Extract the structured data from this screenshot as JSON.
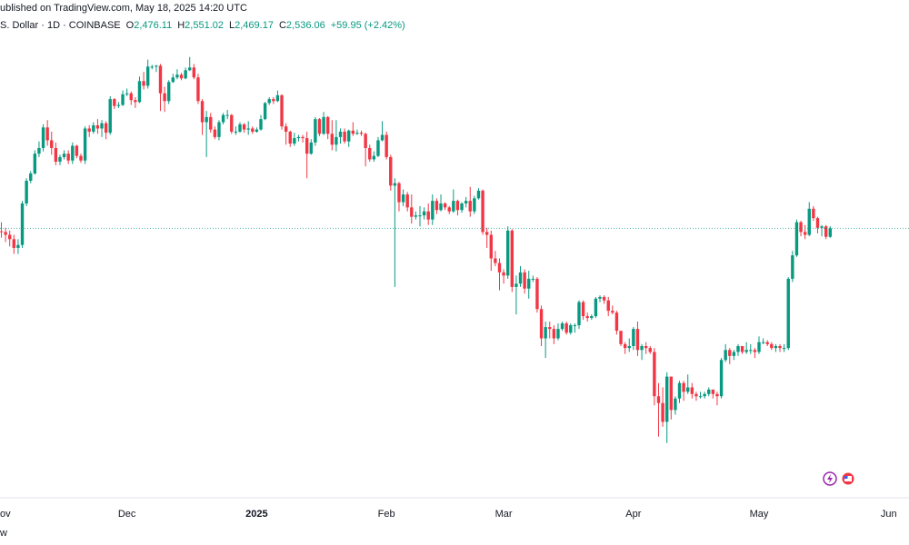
{
  "header": {
    "source": "ublished on TradingView.com, May 18, 2025 14:20 UTC",
    "symbol": "S. Dollar · 1D · COINBASE",
    "ohlc": [
      {
        "label": "O",
        "value": "2,476.11"
      },
      {
        "label": "H",
        "value": "2,551.02"
      },
      {
        "label": "L",
        "value": "2,469.17"
      },
      {
        "label": "C",
        "value": "2,536.06"
      }
    ],
    "change": "+59.95 (+2.42%)"
  },
  "chart_data": {
    "type": "candlestick",
    "log_scale": true,
    "up_color": "#089981",
    "down_color": "#f23645",
    "ylim": [
      1193,
      4826
    ],
    "xlim": [
      0,
      216
    ],
    "xticks": [
      {
        "value": 0,
        "label": "ov"
      },
      {
        "value": 30,
        "label": "Dec"
      },
      {
        "value": 61,
        "label": "2025"
      },
      {
        "value": 92,
        "label": "Feb"
      },
      {
        "value": 120,
        "label": "Mar"
      },
      {
        "value": 151,
        "label": "Apr"
      },
      {
        "value": 181,
        "label": "May"
      },
      {
        "value": 212,
        "label": "Jun"
      }
    ],
    "open": [
      2515,
      2510,
      2490,
      2460,
      2400,
      2420,
      2720,
      2900,
      2960,
      3130,
      3180,
      3370,
      3250,
      3180,
      3060,
      3100,
      3130,
      3070,
      3200,
      3110,
      3070,
      3360,
      3330,
      3390,
      3360,
      3410,
      3320,
      3650,
      3580,
      3590,
      3700,
      3710,
      3640,
      3620,
      3840,
      3790,
      4000,
      4000,
      4010,
      3710,
      3630,
      3830,
      3880,
      3910,
      3870,
      3960,
      3990,
      3880,
      3630,
      3420,
      3470,
      3350,
      3280,
      3420,
      3490,
      3490,
      3330,
      3330,
      3400,
      3350,
      3360,
      3330,
      3350,
      3450,
      3610,
      3650,
      3630,
      3690,
      3380,
      3330,
      3220,
      3270,
      3280,
      3270,
      3130,
      3230,
      3450,
      3310,
      3470,
      3310,
      3210,
      3280,
      3330,
      3240,
      3340,
      3310,
      3320,
      3310,
      3180,
      3080,
      3110,
      3250,
      3300,
      3100,
      2860,
      2880,
      2730,
      2790,
      2690,
      2620,
      2630,
      2630,
      2660,
      2600,
      2740,
      2670,
      2720,
      2690,
      2660,
      2740,
      2670,
      2720,
      2740,
      2660,
      2760,
      2820,
      2510,
      2490,
      2330,
      2300,
      2240,
      2220,
      2520,
      2150,
      2170,
      2240,
      2140,
      2200,
      2200,
      2020,
      1860,
      1920,
      1910,
      1860,
      1910,
      1940,
      1890,
      1930,
      1930,
      2060,
      1980,
      1970,
      1980,
      2080,
      2090,
      2070,
      2010,
      2000,
      1900,
      1830,
      1810,
      1820,
      1910,
      1800,
      1820,
      1810,
      1790,
      1580,
      1550,
      1470,
      1670,
      1520,
      1570,
      1640,
      1600,
      1620,
      1590,
      1580,
      1580,
      1590,
      1610,
      1590,
      1580,
      1750,
      1800,
      1770,
      1790,
      1820,
      1790,
      1800,
      1800,
      1790,
      1840,
      1840,
      1830,
      1810,
      1820,
      1810,
      1810,
      2200,
      2350,
      2580,
      2510,
      2490,
      2680,
      2610,
      2540,
      2550,
      2476.11
    ],
    "high": [
      2580,
      2540,
      2520,
      2490,
      2460,
      2740,
      2920,
      2980,
      3160,
      3240,
      3400,
      3440,
      3330,
      3230,
      3120,
      3160,
      3160,
      3230,
      3210,
      3130,
      3380,
      3390,
      3420,
      3450,
      3440,
      3430,
      3680,
      3660,
      3620,
      3740,
      3760,
      3730,
      3670,
      3890,
      3940,
      4080,
      4020,
      4020,
      4030,
      3780,
      3850,
      3920,
      3970,
      3930,
      3990,
      4110,
      4030,
      3920,
      3650,
      3530,
      3510,
      3380,
      3440,
      3510,
      3540,
      3500,
      3380,
      3420,
      3410,
      3430,
      3380,
      3370,
      3490,
      3620,
      3670,
      3670,
      3740,
      3700,
      3410,
      3340,
      3320,
      3300,
      3300,
      3330,
      3260,
      3470,
      3460,
      3520,
      3480,
      3440,
      3440,
      3360,
      3360,
      3350,
      3420,
      3350,
      3340,
      3320,
      3210,
      3150,
      3280,
      3430,
      3330,
      3120,
      2920,
      2890,
      2830,
      2810,
      2790,
      2660,
      2700,
      2690,
      2720,
      2790,
      2760,
      2790,
      2730,
      2700,
      2830,
      2750,
      2730,
      2770,
      2850,
      2780,
      2840,
      2830,
      2540,
      2520,
      2380,
      2330,
      2260,
      2550,
      2530,
      2220,
      2280,
      2260,
      2250,
      2220,
      2210,
      2040,
      1950,
      1950,
      1930,
      1940,
      1950,
      1950,
      1940,
      1940,
      2070,
      2070,
      2000,
      1990,
      2090,
      2100,
      2100,
      2090,
      2040,
      2010,
      1900,
      1840,
      1860,
      1920,
      1950,
      1830,
      1840,
      1820,
      1810,
      1640,
      1620,
      1690,
      1670,
      1580,
      1650,
      1650,
      1680,
      1640,
      1600,
      1600,
      1600,
      1620,
      1610,
      1600,
      1760,
      1830,
      1810,
      1800,
      1830,
      1820,
      1840,
      1830,
      1810,
      1870,
      1860,
      1850,
      1840,
      1830,
      1830,
      1830,
      2210,
      2380,
      2600,
      2590,
      2560,
      2730,
      2700,
      2620,
      2560,
      2560,
      2551.02
    ],
    "low": [
      2470,
      2440,
      2410,
      2360,
      2360,
      2400,
      2700,
      2880,
      2950,
      3100,
      3150,
      3200,
      3120,
      3030,
      3030,
      3080,
      3040,
      3040,
      3090,
      3050,
      3040,
      3280,
      3310,
      3310,
      3280,
      3260,
      3300,
      3550,
      3560,
      3580,
      3680,
      3590,
      3560,
      3610,
      3750,
      3760,
      3970,
      3940,
      3530,
      3520,
      3600,
      3820,
      3860,
      3850,
      3860,
      3950,
      3860,
      3600,
      3300,
      3100,
      3320,
      3260,
      3250,
      3400,
      3450,
      3310,
      3300,
      3320,
      3320,
      3300,
      3310,
      3320,
      3340,
      3440,
      3590,
      3600,
      3620,
      3350,
      3210,
      3190,
      3200,
      3240,
      3230,
      2920,
      3120,
      3200,
      3290,
      3300,
      3260,
      3160,
      3150,
      3220,
      3220,
      3190,
      3290,
      3300,
      3290,
      3020,
      3060,
      3060,
      3100,
      3240,
      3080,
      2820,
      2150,
      2660,
      2700,
      2660,
      2570,
      2600,
      2550,
      2600,
      2560,
      2560,
      2640,
      2660,
      2670,
      2640,
      2650,
      2630,
      2650,
      2690,
      2620,
      2640,
      2750,
      2490,
      2400,
      2250,
      2280,
      2130,
      2170,
      2200,
      2120,
      1990,
      2150,
      2110,
      2080,
      2180,
      2000,
      1820,
      1760,
      1860,
      1830,
      1850,
      1900,
      1880,
      1880,
      1890,
      1910,
      1960,
      1950,
      1960,
      1970,
      2060,
      2050,
      1980,
      1990,
      1880,
      1820,
      1780,
      1790,
      1800,
      1770,
      1750,
      1780,
      1780,
      1540,
      1410,
      1450,
      1385,
      1480,
      1500,
      1550,
      1560,
      1590,
      1570,
      1560,
      1570,
      1570,
      1580,
      1570,
      1540,
      1570,
      1740,
      1730,
      1750,
      1770,
      1780,
      1780,
      1780,
      1760,
      1780,
      1830,
      1820,
      1800,
      1790,
      1790,
      1790,
      1800,
      2180,
      2340,
      2480,
      2460,
      2480,
      2590,
      2500,
      2480,
      2460,
      2469.17
    ],
    "close": [
      2510,
      2490,
      2460,
      2400,
      2420,
      2720,
      2900,
      2960,
      3130,
      3180,
      3370,
      3250,
      3180,
      3060,
      3100,
      3130,
      3070,
      3200,
      3110,
      3070,
      3360,
      3330,
      3390,
      3360,
      3410,
      3320,
      3650,
      3580,
      3590,
      3700,
      3710,
      3640,
      3620,
      3840,
      3790,
      4000,
      4000,
      4010,
      3710,
      3630,
      3830,
      3880,
      3910,
      3870,
      3960,
      3990,
      3880,
      3630,
      3420,
      3470,
      3350,
      3280,
      3420,
      3490,
      3490,
      3330,
      3330,
      3400,
      3350,
      3360,
      3330,
      3350,
      3450,
      3610,
      3650,
      3630,
      3690,
      3380,
      3330,
      3220,
      3270,
      3280,
      3270,
      3130,
      3230,
      3450,
      3310,
      3470,
      3310,
      3210,
      3280,
      3330,
      3240,
      3340,
      3310,
      3320,
      3310,
      3180,
      3080,
      3110,
      3250,
      3300,
      3100,
      2860,
      2880,
      2730,
      2790,
      2690,
      2620,
      2630,
      2630,
      2660,
      2600,
      2740,
      2670,
      2720,
      2690,
      2660,
      2740,
      2670,
      2720,
      2740,
      2660,
      2760,
      2820,
      2510,
      2490,
      2330,
      2300,
      2240,
      2220,
      2520,
      2150,
      2170,
      2240,
      2140,
      2200,
      2200,
      2020,
      1860,
      1920,
      1910,
      1860,
      1910,
      1940,
      1890,
      1930,
      1930,
      2060,
      1980,
      1970,
      1980,
      2080,
      2090,
      2070,
      2010,
      2000,
      1900,
      1830,
      1810,
      1820,
      1910,
      1800,
      1820,
      1810,
      1790,
      1580,
      1550,
      1470,
      1670,
      1520,
      1570,
      1640,
      1600,
      1620,
      1590,
      1580,
      1580,
      1590,
      1610,
      1590,
      1580,
      1750,
      1800,
      1770,
      1790,
      1820,
      1790,
      1800,
      1800,
      1790,
      1840,
      1840,
      1830,
      1810,
      1820,
      1810,
      1810,
      2200,
      2350,
      2580,
      2510,
      2490,
      2680,
      2610,
      2540,
      2550,
      2476.11,
      2536.06
    ]
  },
  "footer": "w"
}
